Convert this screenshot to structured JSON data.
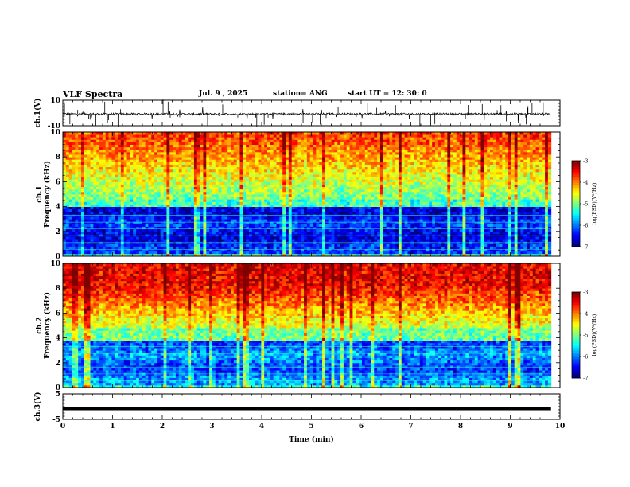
{
  "header": {
    "title": "VLF Spectra",
    "date": "Jul. 9 , 2025",
    "station": "station= ANG",
    "start": "start UT = 12: 30: 0"
  },
  "chart_data": [
    {
      "type": "line",
      "panel": "ch1-waveform",
      "ylabel": "ch.1(V)",
      "ylim": [
        -10,
        10
      ],
      "ytick_labels": [
        "10",
        "-10"
      ],
      "xlim": [
        0,
        10
      ]
    },
    {
      "type": "heatmap",
      "panel": "ch1-spectrogram",
      "ylabel": "ch.1\nFrequency (kHz)",
      "ylim": [
        0,
        10
      ],
      "ytick_labels": [
        "0",
        "2",
        "4",
        "6",
        "8",
        "10"
      ],
      "xlim": [
        0,
        10
      ],
      "data_end_min": 9.82,
      "colorbar": {
        "label": "log(PSD)(V²/Hz)",
        "range": [
          -7,
          -3
        ],
        "tick_labels": [
          "-3",
          "-4",
          "-5",
          "-6",
          "-7"
        ]
      }
    },
    {
      "type": "heatmap",
      "panel": "ch2-spectrogram",
      "ylabel": "ch.2\nFrequency (kHz)",
      "ylim": [
        0,
        10
      ],
      "ytick_labels": [
        "0",
        "2",
        "4",
        "6",
        "8",
        "10"
      ],
      "xlim": [
        0,
        10
      ],
      "data_end_min": 9.82,
      "colorbar": {
        "label": "log(PSD)(V²/Hz)",
        "range": [
          -7,
          -3
        ],
        "tick_labels": [
          "-3",
          "-4",
          "-5",
          "-6",
          "-7"
        ]
      }
    },
    {
      "type": "line",
      "panel": "ch3-waveform",
      "ylabel": "ch.3(V)",
      "ylim": [
        -5,
        5
      ],
      "ytick_labels": [
        "5",
        "-5"
      ],
      "series": [
        {
          "x": [
            0,
            9.82
          ],
          "y": [
            -0.8,
            -0.8
          ]
        }
      ],
      "xlim": [
        0,
        10
      ],
      "xlabel": "Time (min)",
      "xtick_labels": [
        "0",
        "1",
        "2",
        "3",
        "4",
        "5",
        "6",
        "7",
        "8",
        "9",
        "10"
      ]
    }
  ]
}
